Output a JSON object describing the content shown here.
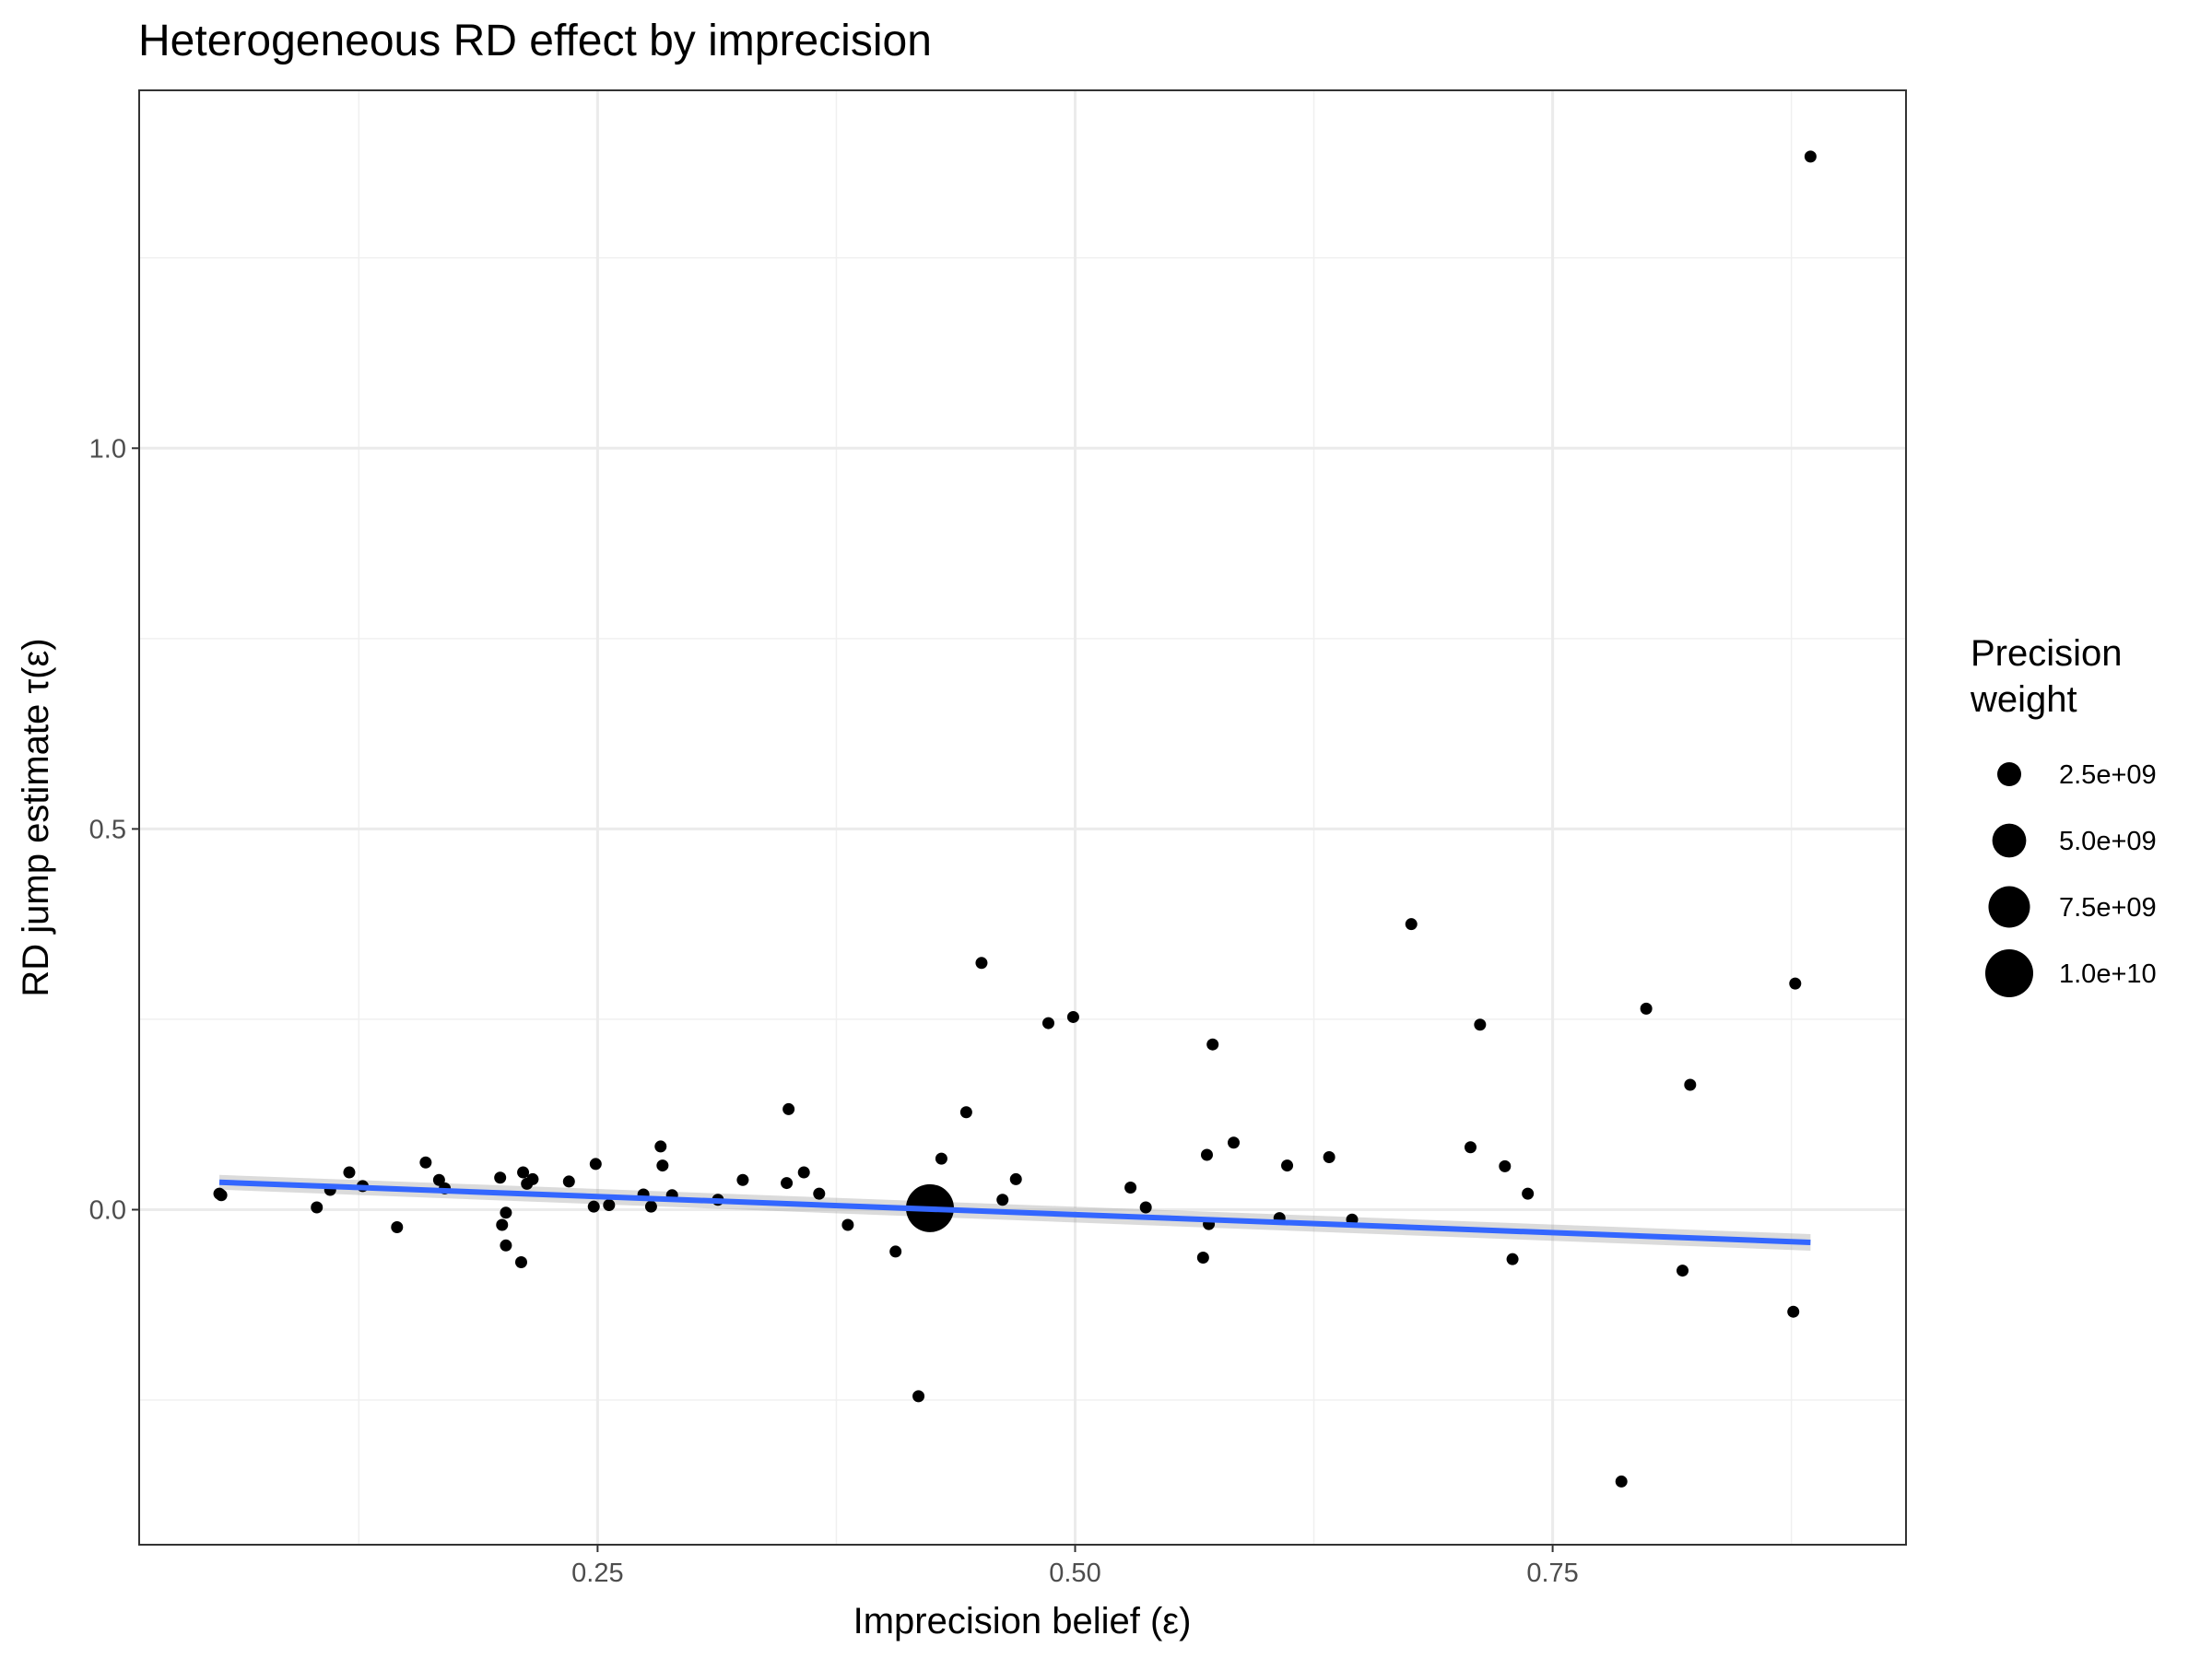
{
  "chart_data": {
    "type": "scatter",
    "title": "Heterogeneous RD effect by imprecision",
    "xlabel": "Imprecision belief (ε)",
    "ylabel": "RD jump estimate τ(ε)",
    "xlim": [
      0.01,
      0.935
    ],
    "ylim": [
      -0.44,
      1.47
    ],
    "x_ticks": [
      0.25,
      0.5,
      0.75
    ],
    "x_tick_labels": [
      "0.25",
      "0.50",
      "0.75"
    ],
    "y_ticks": [
      0.0,
      0.5,
      1.0
    ],
    "y_tick_labels": [
      "0.0",
      "0.5",
      "1.0"
    ],
    "grid": true,
    "legend": {
      "title": "Precision\nweight",
      "position": "right",
      "entries": [
        {
          "label": "2.5e+09",
          "value": 2500000000
        },
        {
          "label": "5.0e+09",
          "value": 5000000000
        },
        {
          "label": "7.5e+09",
          "value": 7500000000
        },
        {
          "label": "1.0e+10",
          "value": 10000000000
        }
      ]
    },
    "series": [
      {
        "type": "scatter",
        "color": "#000000",
        "points": [
          {
            "x": 0.052,
            "y": 0.021
          },
          {
            "x": 0.053,
            "y": 0.019
          },
          {
            "x": 0.103,
            "y": 0.003
          },
          {
            "x": 0.11,
            "y": 0.026
          },
          {
            "x": 0.12,
            "y": 0.049
          },
          {
            "x": 0.127,
            "y": 0.031
          },
          {
            "x": 0.145,
            "y": -0.023
          },
          {
            "x": 0.16,
            "y": 0.062
          },
          {
            "x": 0.167,
            "y": 0.039
          },
          {
            "x": 0.17,
            "y": 0.028
          },
          {
            "x": 0.199,
            "y": 0.042
          },
          {
            "x": 0.2,
            "y": -0.02
          },
          {
            "x": 0.202,
            "y": -0.004
          },
          {
            "x": 0.202,
            "y": -0.047
          },
          {
            "x": 0.21,
            "y": -0.069
          },
          {
            "x": 0.211,
            "y": 0.049
          },
          {
            "x": 0.213,
            "y": 0.034
          },
          {
            "x": 0.216,
            "y": 0.04
          },
          {
            "x": 0.235,
            "y": 0.037
          },
          {
            "x": 0.249,
            "y": 0.06
          },
          {
            "x": 0.248,
            "y": 0.004
          },
          {
            "x": 0.256,
            "y": 0.006
          },
          {
            "x": 0.274,
            "y": 0.02
          },
          {
            "x": 0.278,
            "y": 0.004
          },
          {
            "x": 0.283,
            "y": 0.083
          },
          {
            "x": 0.284,
            "y": 0.058
          },
          {
            "x": 0.289,
            "y": 0.019
          },
          {
            "x": 0.313,
            "y": 0.013
          },
          {
            "x": 0.326,
            "y": 0.039
          },
          {
            "x": 0.349,
            "y": 0.035
          },
          {
            "x": 0.35,
            "y": 0.132
          },
          {
            "x": 0.358,
            "y": 0.049
          },
          {
            "x": 0.366,
            "y": 0.021
          },
          {
            "x": 0.381,
            "y": -0.02
          },
          {
            "x": 0.406,
            "y": -0.055
          },
          {
            "x": 0.416,
            "y": -0.01
          },
          {
            "x": 0.418,
            "y": -0.245
          },
          {
            "x": 0.43,
            "y": 0.067
          },
          {
            "x": 0.443,
            "y": 0.128
          },
          {
            "x": 0.451,
            "y": 0.324
          },
          {
            "x": 0.462,
            "y": 0.013
          },
          {
            "x": 0.469,
            "y": 0.04
          },
          {
            "x": 0.486,
            "y": 0.245
          },
          {
            "x": 0.499,
            "y": 0.253
          },
          {
            "x": 0.529,
            "y": 0.029
          },
          {
            "x": 0.537,
            "y": 0.003
          },
          {
            "x": 0.567,
            "y": -0.063
          },
          {
            "x": 0.569,
            "y": 0.072
          },
          {
            "x": 0.57,
            "y": -0.019
          },
          {
            "x": 0.572,
            "y": 0.217
          },
          {
            "x": 0.583,
            "y": 0.088
          },
          {
            "x": 0.607,
            "y": -0.011
          },
          {
            "x": 0.611,
            "y": 0.058
          },
          {
            "x": 0.633,
            "y": 0.069
          },
          {
            "x": 0.645,
            "y": -0.013
          },
          {
            "x": 0.676,
            "y": 0.375
          },
          {
            "x": 0.707,
            "y": 0.082
          },
          {
            "x": 0.712,
            "y": 0.243
          },
          {
            "x": 0.725,
            "y": 0.057
          },
          {
            "x": 0.729,
            "y": -0.065
          },
          {
            "x": 0.737,
            "y": 0.021
          },
          {
            "x": 0.786,
            "y": -0.357
          },
          {
            "x": 0.799,
            "y": 0.264
          },
          {
            "x": 0.818,
            "y": -0.08
          },
          {
            "x": 0.822,
            "y": 0.164
          },
          {
            "x": 0.876,
            "y": -0.134
          },
          {
            "x": 0.877,
            "y": 0.297
          },
          {
            "x": 0.885,
            "y": 1.383
          }
        ],
        "large_point": {
          "x": 0.424,
          "y": 0.002,
          "weight": 10000000000
        }
      },
      {
        "type": "line",
        "color": "#3366FF",
        "x": [
          0.052,
          0.885
        ],
        "y": [
          0.036,
          -0.043
        ]
      }
    ]
  }
}
